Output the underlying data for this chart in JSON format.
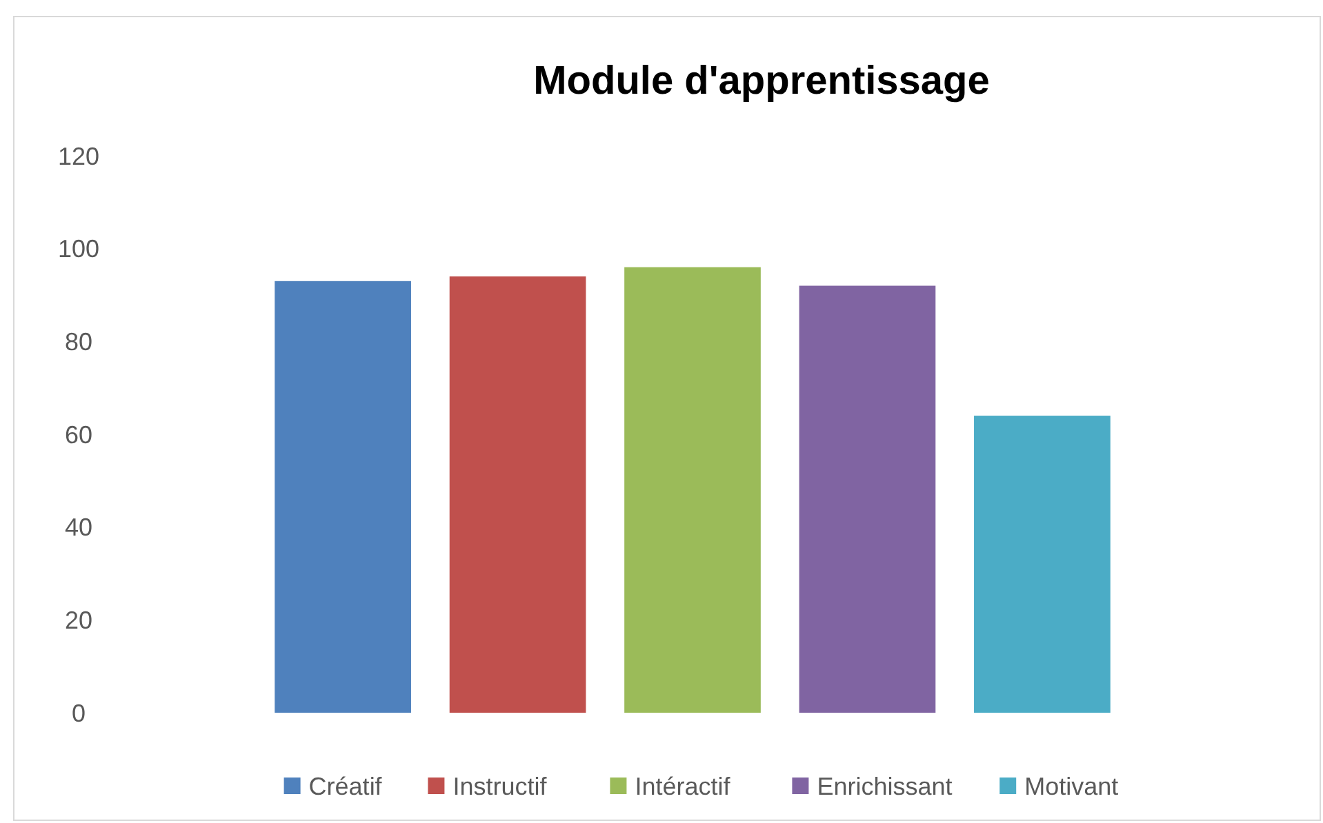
{
  "chart_data": {
    "type": "bar",
    "title": "Module d'apprentissage",
    "categories": [
      null
    ],
    "series": [
      {
        "name": "Créatif",
        "color": "#4f81bd",
        "values": [
          93
        ]
      },
      {
        "name": "Instructif",
        "color": "#c0504d",
        "values": [
          94
        ]
      },
      {
        "name": "Intéractif",
        "color": "#9bbb59",
        "values": [
          96
        ]
      },
      {
        "name": "Enrichissant",
        "color": "#8064a2",
        "values": [
          92
        ]
      },
      {
        "name": "Motivant",
        "color": "#4bacc6",
        "values": [
          64
        ]
      }
    ],
    "ylim": [
      0,
      120
    ],
    "yticks": [
      0,
      20,
      40,
      60,
      80,
      100,
      120
    ],
    "legend": "bottom"
  }
}
